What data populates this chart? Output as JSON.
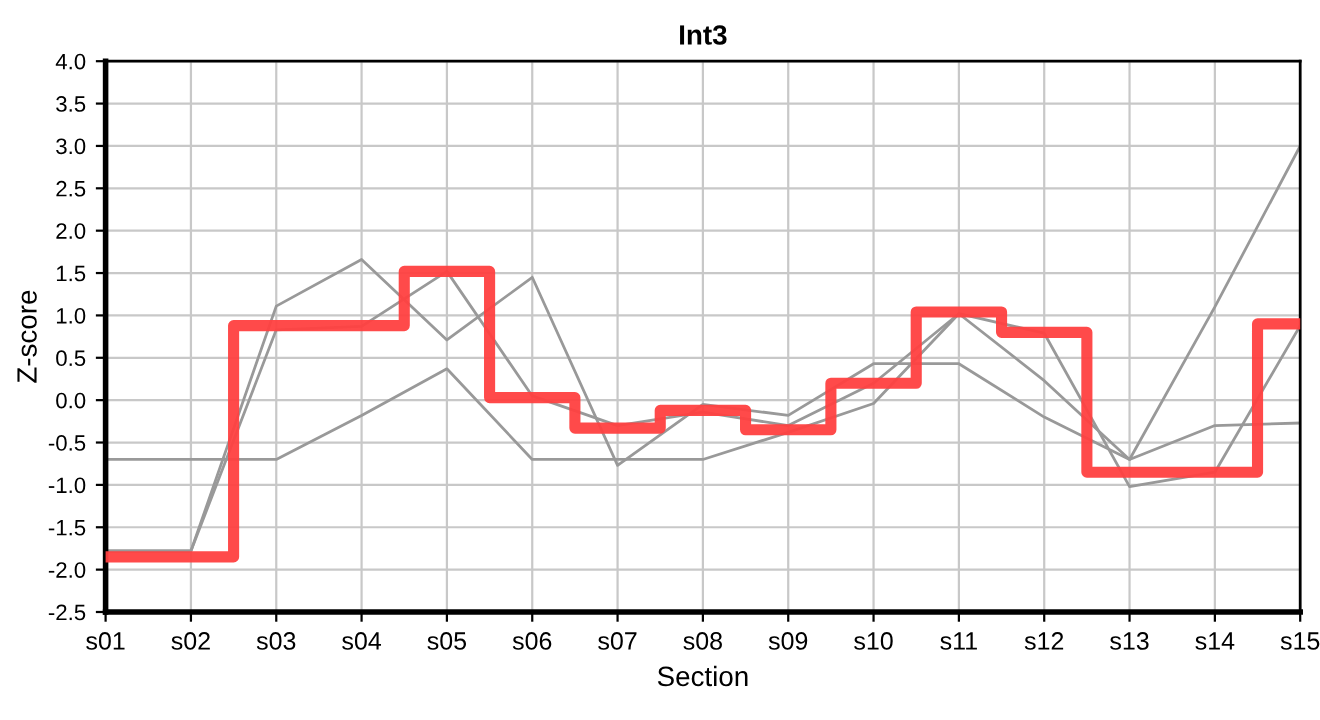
{
  "chart_data": {
    "type": "line",
    "title": "Int3",
    "xlabel": "Section",
    "ylabel": "Z-score",
    "categories": [
      "s01",
      "s02",
      "s03",
      "s04",
      "s05",
      "s06",
      "s07",
      "s08",
      "s09",
      "s10",
      "s11",
      "s12",
      "s13",
      "s14",
      "s15"
    ],
    "series": [
      {
        "color": "#999999",
        "values": [
          -0.7,
          -0.7,
          -0.7,
          -0.18,
          0.37,
          -0.7,
          -0.7,
          -0.7,
          -0.38,
          -0.04,
          1.02,
          0.23,
          -0.7,
          1.1,
          3.0
        ]
      },
      {
        "color": "#999999",
        "values": [
          -1.78,
          -1.78,
          1.11,
          1.66,
          0.71,
          1.45,
          -0.77,
          -0.05,
          -0.18,
          0.43,
          0.43,
          -0.2,
          -0.7,
          -0.3,
          -0.27
        ]
      },
      {
        "color": "#999999",
        "values": [
          -1.78,
          -1.78,
          0.83,
          0.87,
          1.52,
          0.05,
          -0.3,
          -0.14,
          -0.3,
          0.2,
          1.02,
          0.79,
          -1.02,
          -0.85,
          0.88
        ]
      },
      {
        "type": "step",
        "color": "#ff4040",
        "values": [
          -1.85,
          -1.85,
          0.88,
          0.88,
          1.52,
          0.03,
          -0.33,
          -0.12,
          -0.35,
          0.2,
          1.04,
          0.8,
          -0.85,
          -0.85,
          0.9
        ]
      }
    ],
    "ylim": [
      -2.5,
      4.0
    ],
    "yticks": [
      {
        "value": -2.5,
        "label": "-2.5"
      },
      {
        "value": -2,
        "label": "-2.0"
      },
      {
        "value": -1.5,
        "label": "-1.5"
      },
      {
        "value": -1,
        "label": "-1.0"
      },
      {
        "value": -0.5,
        "label": "-0.5"
      },
      {
        "value": 0,
        "label": "0.0"
      },
      {
        "value": 0.5,
        "label": "0.5"
      },
      {
        "value": 1,
        "label": "1.0"
      },
      {
        "value": 1.5,
        "label": "1.5"
      },
      {
        "value": 2,
        "label": "2.0"
      },
      {
        "value": 2.5,
        "label": "2.5"
      },
      {
        "value": 3,
        "label": "3.0"
      },
      {
        "value": 3.5,
        "label": "3.5"
      },
      {
        "value": 4,
        "label": "4.0"
      }
    ],
    "grid": true,
    "marker": "none",
    "line_style": "solid"
  }
}
